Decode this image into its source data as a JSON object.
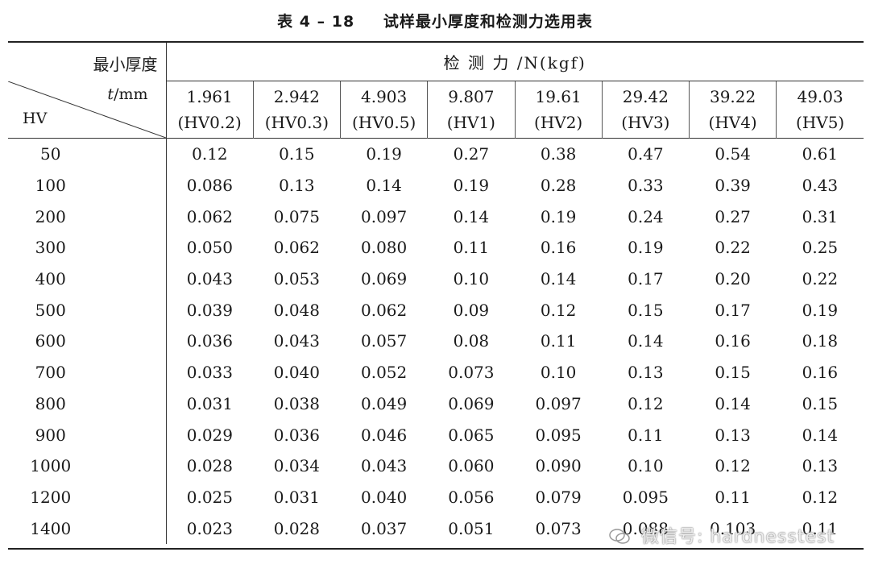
{
  "title": {
    "number": "表 4 – 18",
    "text": "试样最小厚度和检测力选用表"
  },
  "corner": {
    "min_thickness": "最小厚度",
    "unit_var": "t",
    "unit": "/mm",
    "hv": "HV"
  },
  "force_header": "检 测 力 /N(kgf)",
  "forces": [
    {
      "value": "1.961",
      "scale": "(HV0.2)"
    },
    {
      "value": "2.942",
      "scale": "(HV0.3)"
    },
    {
      "value": "4.903",
      "scale": "(HV0.5)"
    },
    {
      "value": "9.807",
      "scale": "(HV1)"
    },
    {
      "value": "19.61",
      "scale": "(HV2)"
    },
    {
      "value": "29.42",
      "scale": "(HV3)"
    },
    {
      "value": "39.22",
      "scale": "(HV4)"
    },
    {
      "value": "49.03",
      "scale": "(HV5)"
    }
  ],
  "rows": [
    {
      "hv": "50",
      "values": [
        "0.12",
        "0.15",
        "0.19",
        "0.27",
        "0.38",
        "0.47",
        "0.54",
        "0.61"
      ]
    },
    {
      "hv": "100",
      "values": [
        "0.086",
        "0.13",
        "0.14",
        "0.19",
        "0.28",
        "0.33",
        "0.39",
        "0.43"
      ]
    },
    {
      "hv": "200",
      "values": [
        "0.062",
        "0.075",
        "0.097",
        "0.14",
        "0.19",
        "0.24",
        "0.27",
        "0.31"
      ]
    },
    {
      "hv": "300",
      "values": [
        "0.050",
        "0.062",
        "0.080",
        "0.11",
        "0.16",
        "0.19",
        "0.22",
        "0.25"
      ]
    },
    {
      "hv": "400",
      "values": [
        "0.043",
        "0.053",
        "0.069",
        "0.10",
        "0.14",
        "0.17",
        "0.20",
        "0.22"
      ]
    },
    {
      "hv": "500",
      "values": [
        "0.039",
        "0.048",
        "0.062",
        "0.09",
        "0.12",
        "0.15",
        "0.17",
        "0.19"
      ]
    },
    {
      "hv": "600",
      "values": [
        "0.036",
        "0.043",
        "0.057",
        "0.08",
        "0.11",
        "0.14",
        "0.16",
        "0.18"
      ]
    },
    {
      "hv": "700",
      "values": [
        "0.033",
        "0.040",
        "0.052",
        "0.073",
        "0.10",
        "0.13",
        "0.15",
        "0.16"
      ]
    },
    {
      "hv": "800",
      "values": [
        "0.031",
        "0.038",
        "0.049",
        "0.069",
        "0.097",
        "0.12",
        "0.14",
        "0.15"
      ]
    },
    {
      "hv": "900",
      "values": [
        "0.029",
        "0.036",
        "0.046",
        "0.065",
        "0.095",
        "0.11",
        "0.13",
        "0.14"
      ]
    },
    {
      "hv": "1000",
      "values": [
        "0.028",
        "0.034",
        "0.043",
        "0.060",
        "0.090",
        "0.10",
        "0.12",
        "0.13"
      ]
    },
    {
      "hv": "1200",
      "values": [
        "0.025",
        "0.031",
        "0.040",
        "0.056",
        "0.079",
        "0.095",
        "0.11",
        "0.12"
      ]
    },
    {
      "hv": "1400",
      "values": [
        "0.023",
        "0.028",
        "0.037",
        "0.051",
        "0.073",
        "0.088",
        "0.103",
        "0.11"
      ]
    }
  ],
  "watermark": {
    "icon": "wechat-icon",
    "text": "微信号: hardnesstest"
  }
}
